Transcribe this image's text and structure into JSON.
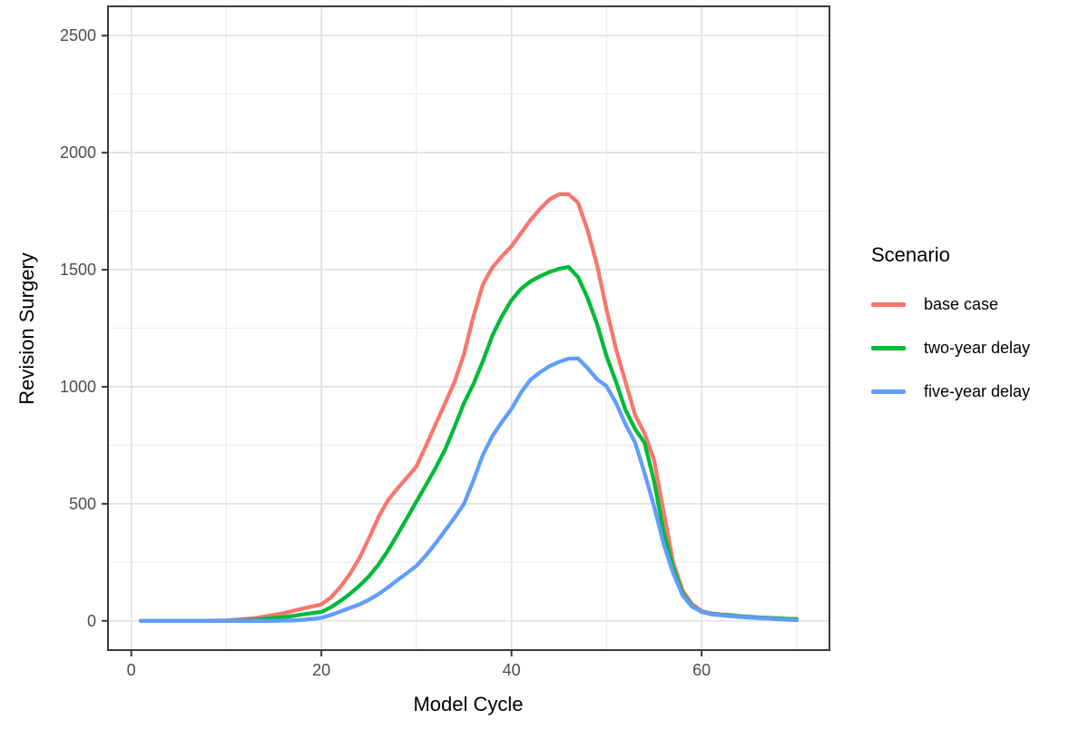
{
  "chart_data": {
    "type": "line",
    "title": "",
    "xlabel": "Model Cycle",
    "ylabel": "Revision Surgery",
    "xlim": [
      -2.45,
      73.45
    ],
    "ylim": [
      -125,
      2625
    ],
    "x_major_ticks": [
      0,
      20,
      40,
      60
    ],
    "x_minor_gridlines": [
      10,
      30,
      50,
      70
    ],
    "y_major_ticks": [
      0,
      500,
      1000,
      1500,
      2000,
      2500
    ],
    "y_minor_gridlines": [
      250,
      750,
      1250,
      1750,
      2250
    ],
    "grid": "major-and-minor-light-gray",
    "panel_border": true,
    "legend": {
      "title": "Scenario",
      "position": "right"
    },
    "style_colors": {
      "grid_major": "#E2E2E2",
      "grid_minor": "#EDEDED",
      "panel_border": "#3A3A3A",
      "tick_label": "#4D4D4D",
      "axis_title": "#000000"
    },
    "series": [
      {
        "name": "base case",
        "color": "#F8766D",
        "points": [
          [
            1,
            0
          ],
          [
            4,
            0
          ],
          [
            7,
            0
          ],
          [
            9,
            1
          ],
          [
            10,
            2
          ],
          [
            11,
            5
          ],
          [
            12,
            8
          ],
          [
            13,
            12
          ],
          [
            14,
            18
          ],
          [
            15,
            25
          ],
          [
            16,
            33
          ],
          [
            17,
            42
          ],
          [
            18,
            52
          ],
          [
            19,
            61
          ],
          [
            20,
            70
          ],
          [
            21,
            100
          ],
          [
            22,
            145
          ],
          [
            23,
            200
          ],
          [
            24,
            268
          ],
          [
            25,
            352
          ],
          [
            26,
            443
          ],
          [
            27,
            515
          ],
          [
            28,
            565
          ],
          [
            29,
            612
          ],
          [
            30,
            660
          ],
          [
            31,
            748
          ],
          [
            32,
            838
          ],
          [
            33,
            928
          ],
          [
            34,
            1020
          ],
          [
            35,
            1140
          ],
          [
            36,
            1300
          ],
          [
            37,
            1438
          ],
          [
            38,
            1510
          ],
          [
            39,
            1558
          ],
          [
            40,
            1600
          ],
          [
            41,
            1656
          ],
          [
            42,
            1712
          ],
          [
            43,
            1760
          ],
          [
            44,
            1800
          ],
          [
            45,
            1822
          ],
          [
            46,
            1823
          ],
          [
            47,
            1786
          ],
          [
            48,
            1670
          ],
          [
            49,
            1520
          ],
          [
            50,
            1330
          ],
          [
            51,
            1160
          ],
          [
            52,
            1020
          ],
          [
            53,
            880
          ],
          [
            54,
            800
          ],
          [
            55,
            688
          ],
          [
            56,
            468
          ],
          [
            57,
            250
          ],
          [
            58,
            130
          ],
          [
            59,
            72
          ],
          [
            60,
            42
          ],
          [
            61,
            32
          ],
          [
            62,
            28
          ],
          [
            63,
            25
          ],
          [
            64,
            21
          ],
          [
            65,
            18
          ],
          [
            66,
            15
          ],
          [
            67,
            13
          ],
          [
            68,
            11
          ],
          [
            69,
            9
          ],
          [
            70,
            8
          ]
        ]
      },
      {
        "name": "two-year delay",
        "color": "#00BA38",
        "points": [
          [
            1,
            0
          ],
          [
            5,
            0
          ],
          [
            9,
            0
          ],
          [
            11,
            1
          ],
          [
            12,
            3
          ],
          [
            13,
            5
          ],
          [
            14,
            8
          ],
          [
            15,
            12
          ],
          [
            16,
            16
          ],
          [
            17,
            21
          ],
          [
            18,
            27
          ],
          [
            19,
            33
          ],
          [
            20,
            38
          ],
          [
            21,
            58
          ],
          [
            22,
            85
          ],
          [
            23,
            115
          ],
          [
            24,
            150
          ],
          [
            25,
            190
          ],
          [
            26,
            240
          ],
          [
            27,
            300
          ],
          [
            28,
            368
          ],
          [
            29,
            438
          ],
          [
            30,
            510
          ],
          [
            31,
            580
          ],
          [
            32,
            652
          ],
          [
            33,
            730
          ],
          [
            34,
            828
          ],
          [
            35,
            930
          ],
          [
            36,
            1012
          ],
          [
            37,
            1110
          ],
          [
            38,
            1220
          ],
          [
            39,
            1302
          ],
          [
            40,
            1370
          ],
          [
            41,
            1418
          ],
          [
            42,
            1450
          ],
          [
            43,
            1472
          ],
          [
            44,
            1490
          ],
          [
            45,
            1504
          ],
          [
            46,
            1512
          ],
          [
            47,
            1468
          ],
          [
            48,
            1380
          ],
          [
            49,
            1268
          ],
          [
            50,
            1130
          ],
          [
            51,
            1020
          ],
          [
            52,
            900
          ],
          [
            53,
            820
          ],
          [
            54,
            760
          ],
          [
            55,
            598
          ],
          [
            56,
            380
          ],
          [
            57,
            228
          ],
          [
            58,
            118
          ],
          [
            59,
            64
          ],
          [
            60,
            38
          ],
          [
            61,
            30
          ],
          [
            62,
            26
          ],
          [
            63,
            23
          ],
          [
            64,
            19
          ],
          [
            65,
            16
          ],
          [
            66,
            14
          ],
          [
            67,
            12
          ],
          [
            68,
            10
          ],
          [
            69,
            8
          ],
          [
            70,
            6
          ]
        ]
      },
      {
        "name": "five-year delay",
        "color": "#619CFF",
        "points": [
          [
            1,
            0
          ],
          [
            5,
            0
          ],
          [
            9,
            0
          ],
          [
            13,
            0
          ],
          [
            15,
            0
          ],
          [
            16,
            1
          ],
          [
            17,
            2
          ],
          [
            18,
            4
          ],
          [
            19,
            8
          ],
          [
            20,
            13
          ],
          [
            21,
            25
          ],
          [
            22,
            40
          ],
          [
            23,
            55
          ],
          [
            24,
            70
          ],
          [
            25,
            90
          ],
          [
            26,
            114
          ],
          [
            27,
            143
          ],
          [
            28,
            174
          ],
          [
            29,
            204
          ],
          [
            30,
            235
          ],
          [
            31,
            280
          ],
          [
            32,
            330
          ],
          [
            33,
            385
          ],
          [
            34,
            440
          ],
          [
            35,
            500
          ],
          [
            36,
            600
          ],
          [
            37,
            710
          ],
          [
            38,
            790
          ],
          [
            39,
            850
          ],
          [
            40,
            905
          ],
          [
            41,
            975
          ],
          [
            42,
            1030
          ],
          [
            43,
            1062
          ],
          [
            44,
            1088
          ],
          [
            45,
            1106
          ],
          [
            46,
            1120
          ],
          [
            47,
            1121
          ],
          [
            48,
            1080
          ],
          [
            49,
            1032
          ],
          [
            50,
            1002
          ],
          [
            51,
            930
          ],
          [
            52,
            840
          ],
          [
            53,
            762
          ],
          [
            54,
            630
          ],
          [
            55,
            490
          ],
          [
            56,
            330
          ],
          [
            57,
            205
          ],
          [
            58,
            108
          ],
          [
            59,
            60
          ],
          [
            60,
            40
          ],
          [
            61,
            28
          ],
          [
            62,
            24
          ],
          [
            63,
            20
          ],
          [
            64,
            17
          ],
          [
            65,
            14
          ],
          [
            66,
            12
          ],
          [
            67,
            10
          ],
          [
            68,
            7
          ],
          [
            69,
            5
          ],
          [
            70,
            3
          ]
        ]
      }
    ]
  }
}
